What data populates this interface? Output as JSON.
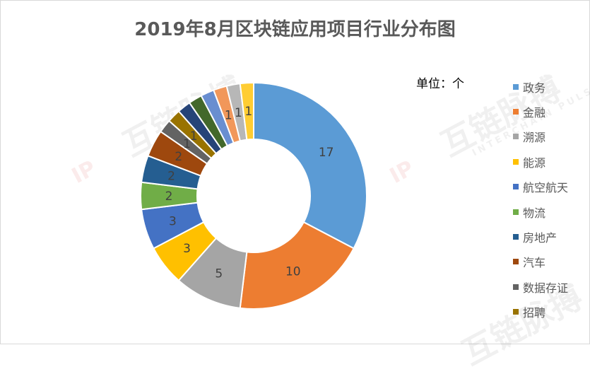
{
  "chart_data": {
    "type": "pie",
    "title": "2019年8月区块链应用项目行业分布图",
    "unit_label": "单位：个",
    "legend_position": "right",
    "categories": [
      "政务",
      "金融",
      "溯源",
      "能源",
      "航空航天",
      "物流",
      "房地产",
      "汽车",
      "数据存证",
      "招聘",
      "",
      "",
      "",
      "",
      "",
      ""
    ],
    "values": [
      17,
      10,
      5,
      3,
      3,
      2,
      2,
      2,
      1,
      1,
      1,
      1,
      1,
      1,
      1,
      1
    ],
    "data_labels": [
      "17",
      "10",
      "5",
      "3",
      "3",
      "2",
      "2",
      "2",
      "1",
      "1",
      "",
      "",
      "",
      "1",
      "1",
      "1"
    ],
    "colors": [
      "#5b9bd5",
      "#ed7d31",
      "#a5a5a5",
      "#ffc000",
      "#4472c4",
      "#70ad47",
      "#255e91",
      "#9e480e",
      "#636363",
      "#997300",
      "#264478",
      "#43682b",
      "#698ed0",
      "#f1975a",
      "#b7b7b7",
      "#ffcd33"
    ]
  },
  "legend": [
    {
      "label": "政务",
      "color": "#5b9bd5"
    },
    {
      "label": "金融",
      "color": "#ed7d31"
    },
    {
      "label": "溯源",
      "color": "#a5a5a5"
    },
    {
      "label": "能源",
      "color": "#ffc000"
    },
    {
      "label": "航空航天",
      "color": "#4472c4"
    },
    {
      "label": "物流",
      "color": "#70ad47"
    },
    {
      "label": "房地产",
      "color": "#255e91"
    },
    {
      "label": "汽车",
      "color": "#9e480e"
    },
    {
      "label": "数据存证",
      "color": "#636363"
    },
    {
      "label": "招聘",
      "color": "#997300"
    }
  ],
  "watermark": {
    "logo": "IP",
    "text": "互链脉搏",
    "subtext": "INTERCHAIN PULSE"
  }
}
